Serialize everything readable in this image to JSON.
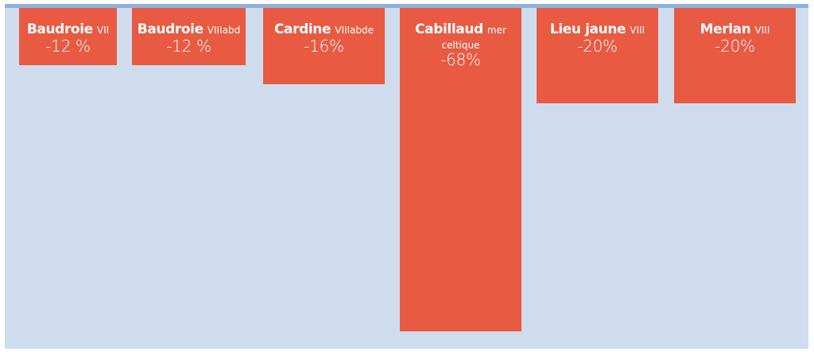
{
  "chart_data": {
    "type": "bar",
    "title": "",
    "xlabel": "",
    "ylabel": "",
    "ylim": [
      -70,
      0
    ],
    "orientation": "vertical-downward",
    "categories": [
      {
        "name": "Baudroie",
        "zone": "VII",
        "value_label": "-12 %"
      },
      {
        "name": "Baudroie",
        "zone": "VIIIabd",
        "value_label": "-12 %"
      },
      {
        "name": "Cardine",
        "zone": "VIIIabde",
        "value_label": "-16%"
      },
      {
        "name": "Cabillaud",
        "zone": "mer celtique",
        "value_label": "-68%"
      },
      {
        "name": "Lieu jaune",
        "zone": "VIII",
        "value_label": "-20%"
      },
      {
        "name": "Merlan",
        "zone": "VIII",
        "value_label": "-20%"
      }
    ],
    "values": [
      -12,
      -12,
      -16,
      -68,
      -20,
      -20
    ]
  },
  "colors": {
    "bar": "#e85a42",
    "background": "#cedcee",
    "baseline": "#8fb0de",
    "text": "#ffffff"
  }
}
